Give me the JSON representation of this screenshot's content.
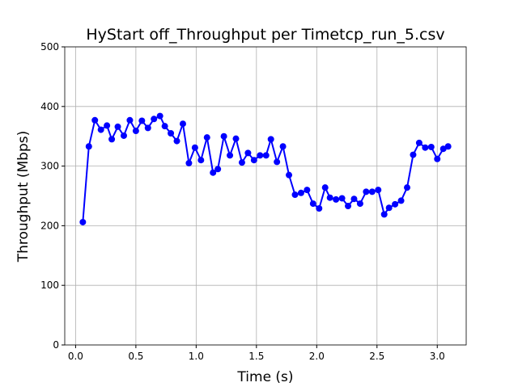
{
  "chart_data": {
    "type": "line",
    "title": "HyStart off_Throughput per Timetcp_run_5.csv",
    "xlabel": "Time (s)",
    "ylabel": "Throughput (Mbps)",
    "x": [
      0.06,
      0.11,
      0.16,
      0.21,
      0.26,
      0.3,
      0.35,
      0.4,
      0.45,
      0.5,
      0.55,
      0.6,
      0.65,
      0.7,
      0.74,
      0.79,
      0.84,
      0.89,
      0.94,
      0.99,
      1.04,
      1.09,
      1.14,
      1.18,
      1.23,
      1.28,
      1.33,
      1.38,
      1.43,
      1.48,
      1.53,
      1.58,
      1.62,
      1.67,
      1.72,
      1.77,
      1.82,
      1.87,
      1.92,
      1.97,
      2.02,
      2.07,
      2.11,
      2.16,
      2.21,
      2.26,
      2.31,
      2.36,
      2.41,
      2.46,
      2.51,
      2.56,
      2.6,
      2.65,
      2.7,
      2.75,
      2.8,
      2.85,
      2.9,
      2.95,
      3.0,
      3.05,
      3.09
    ],
    "series": [
      {
        "color": "#0000ff",
        "values": [
          206,
          333,
          377,
          361,
          368,
          345,
          366,
          351,
          377,
          359,
          376,
          364,
          379,
          384,
          367,
          355,
          342,
          371,
          305,
          331,
          310,
          348,
          289,
          295,
          350,
          318,
          346,
          306,
          322,
          310,
          318,
          318,
          345,
          307,
          333,
          285,
          252,
          255,
          260,
          237,
          229,
          264,
          247,
          244,
          246,
          233,
          245,
          237,
          257,
          257,
          260,
          219,
          230,
          236,
          242,
          264,
          319,
          339,
          331,
          332,
          312,
          329,
          333
        ]
      }
    ],
    "xlim": [
      -0.09,
      3.24
    ],
    "ylim": [
      0,
      500
    ],
    "xticks": [
      {
        "value": 0,
        "label": "0.0"
      },
      {
        "value": 0.5,
        "label": "0.5"
      },
      {
        "value": 1,
        "label": "1.0"
      },
      {
        "value": 1.5,
        "label": "1.5"
      },
      {
        "value": 2,
        "label": "2.0"
      },
      {
        "value": 2.5,
        "label": "2.5"
      },
      {
        "value": 3,
        "label": "3.0"
      }
    ],
    "yticks": [
      0,
      100,
      200,
      300,
      400,
      500
    ],
    "grid": true
  }
}
